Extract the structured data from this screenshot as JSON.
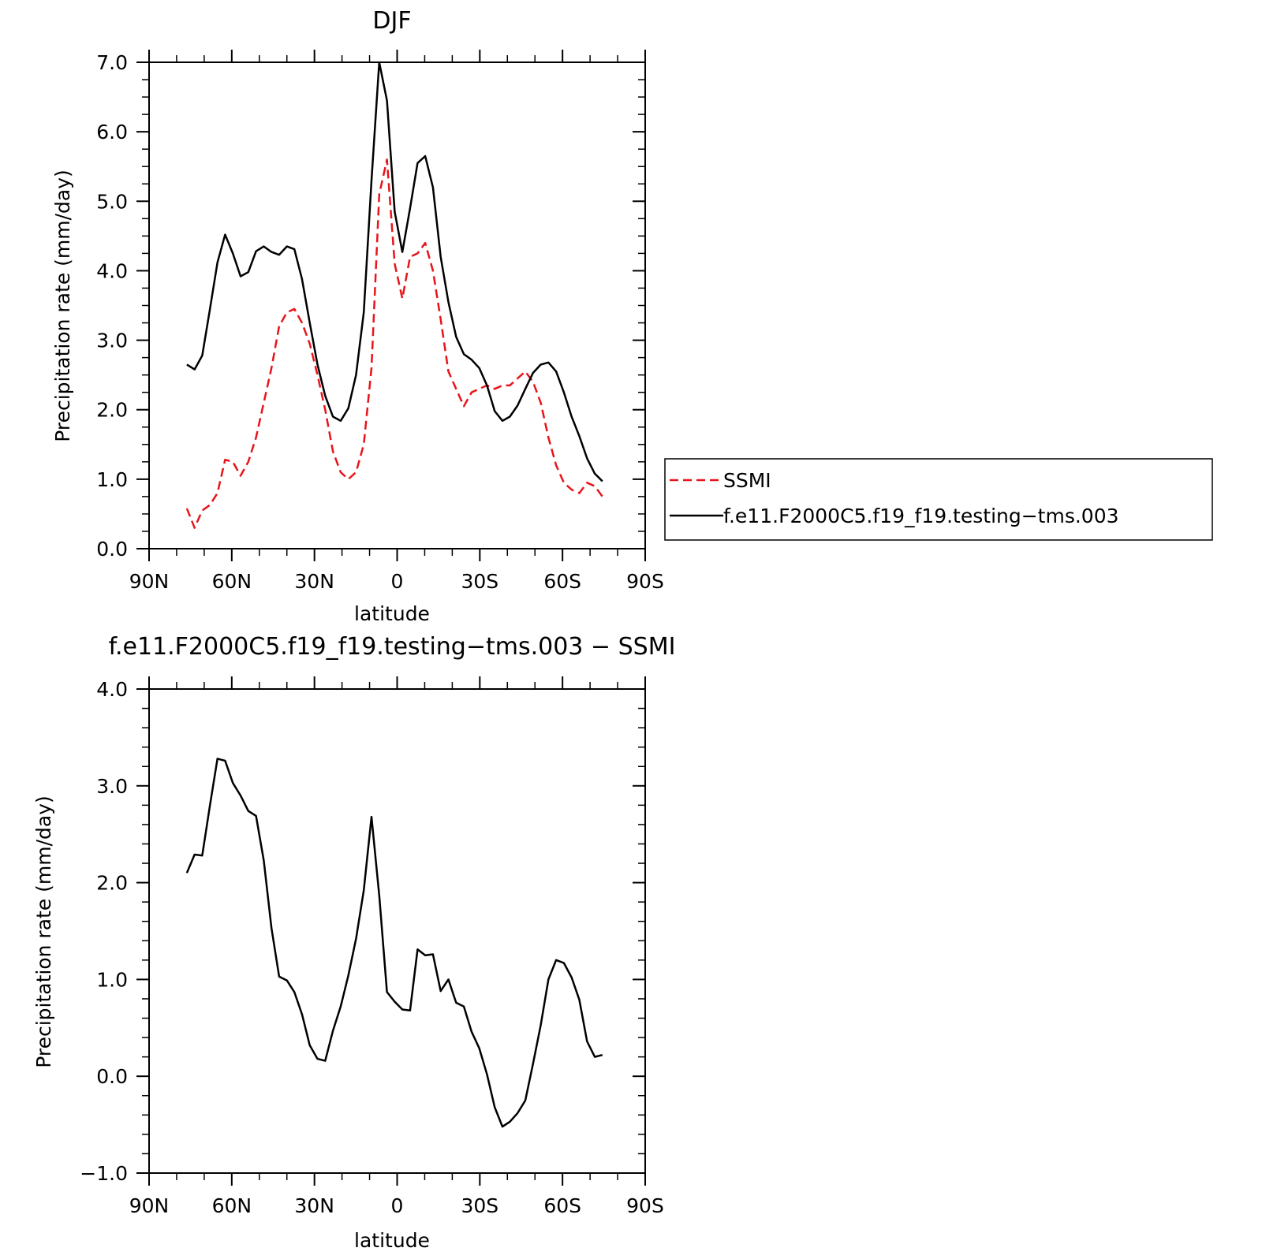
{
  "chart_data": [
    {
      "type": "line",
      "title": "DJF",
      "xlabel": "latitude",
      "ylabel": "Precipitation rate (mm/day)",
      "xlim": [
        90,
        -90
      ],
      "ylim": [
        0.0,
        7.0
      ],
      "x_ticks": [
        90,
        60,
        30,
        0,
        -30,
        -60,
        -90
      ],
      "x_tick_labels": [
        "90N",
        "60N",
        "30N",
        "0",
        "30S",
        "60S",
        "90S"
      ],
      "y_ticks": [
        0,
        1,
        2,
        3,
        4,
        5,
        6,
        7
      ],
      "y_tick_labels": [
        "0.0",
        "1.0",
        "2.0",
        "3.0",
        "4.0",
        "5.0",
        "6.0",
        "7.0"
      ],
      "legend": {
        "position": "right"
      },
      "series": [
        {
          "name": "SSMI",
          "color": "#e8141b",
          "dash": "dashed",
          "x": [
            76.3,
            73.5,
            70.7,
            67.9,
            65.2,
            62.4,
            59.6,
            56.8,
            54.0,
            51.2,
            48.4,
            45.6,
            42.8,
            40.0,
            37.3,
            34.5,
            31.7,
            28.9,
            26.1,
            23.3,
            20.5,
            17.7,
            14.9,
            12.1,
            9.3,
            6.5,
            3.7,
            0.9,
            -1.9,
            -4.7,
            -7.4,
            -10.2,
            -13.0,
            -15.8,
            -18.6,
            -21.4,
            -24.2,
            -27.0,
            -29.8,
            -32.6,
            -35.4,
            -38.2,
            -40.9,
            -43.7,
            -46.5,
            -49.3,
            -52.1,
            -54.9,
            -57.7,
            -60.5,
            -63.3,
            -66.1,
            -68.9,
            -71.7,
            -74.5
          ],
          "values": [
            0.58,
            0.3,
            0.55,
            0.63,
            0.8,
            1.28,
            1.25,
            1.05,
            1.25,
            1.6,
            2.1,
            2.6,
            3.2,
            3.4,
            3.45,
            3.25,
            2.95,
            2.5,
            2.0,
            1.4,
            1.1,
            1.0,
            1.1,
            1.5,
            2.6,
            5.1,
            5.6,
            4.1,
            3.6,
            4.2,
            4.25,
            4.4,
            4.0,
            3.3,
            2.55,
            2.3,
            2.05,
            2.25,
            2.3,
            2.35,
            2.3,
            2.35,
            2.35,
            2.45,
            2.55,
            2.4,
            2.1,
            1.6,
            1.2,
            0.95,
            0.85,
            0.8,
            0.95,
            0.9,
            0.75
          ]
        },
        {
          "name": "f.e11.F2000C5.f19_f19.testing−tms.003",
          "color": "#000000",
          "dash": "solid",
          "x": [
            76.3,
            73.5,
            70.7,
            67.9,
            65.2,
            62.4,
            59.6,
            56.8,
            54.0,
            51.2,
            48.4,
            45.6,
            42.8,
            40.0,
            37.3,
            34.5,
            31.7,
            28.9,
            26.1,
            23.3,
            20.5,
            17.7,
            14.9,
            12.1,
            9.3,
            6.5,
            3.7,
            0.9,
            -1.9,
            -4.7,
            -7.4,
            -10.2,
            -13.0,
            -15.8,
            -18.6,
            -21.4,
            -24.2,
            -27.0,
            -29.8,
            -32.6,
            -35.4,
            -38.2,
            -40.9,
            -43.7,
            -46.5,
            -49.3,
            -52.1,
            -54.9,
            -57.7,
            -60.5,
            -63.3,
            -66.1,
            -68.9,
            -71.7,
            -74.5
          ],
          "values": [
            2.65,
            2.58,
            2.78,
            3.45,
            4.12,
            4.52,
            4.25,
            3.92,
            3.98,
            4.28,
            4.35,
            4.27,
            4.23,
            4.35,
            4.31,
            3.88,
            3.25,
            2.65,
            2.2,
            1.9,
            1.84,
            2.02,
            2.5,
            3.4,
            5.3,
            7.0,
            6.45,
            4.85,
            4.27,
            4.9,
            5.55,
            5.65,
            5.2,
            4.2,
            3.55,
            3.05,
            2.8,
            2.72,
            2.6,
            2.35,
            1.98,
            1.84,
            1.9,
            2.06,
            2.3,
            2.53,
            2.65,
            2.68,
            2.55,
            2.25,
            1.9,
            1.62,
            1.3,
            1.08,
            0.97
          ]
        }
      ]
    },
    {
      "type": "line",
      "title": "f.e11.F2000C5.f19_f19.testing−tms.003 − SSMI",
      "xlabel": "latitude",
      "ylabel": "Precipitation rate (mm/day)",
      "xlim": [
        90,
        -90
      ],
      "ylim": [
        -1.0,
        4.0
      ],
      "x_ticks": [
        90,
        60,
        30,
        0,
        -30,
        -60,
        -90
      ],
      "x_tick_labels": [
        "90N",
        "60N",
        "30N",
        "0",
        "30S",
        "60S",
        "90S"
      ],
      "y_ticks": [
        -1,
        0,
        1,
        2,
        3,
        4
      ],
      "y_tick_labels": [
        "−1.0",
        "0.0",
        "1.0",
        "2.0",
        "3.0",
        "4.0"
      ],
      "series": [
        {
          "color": "#000000",
          "dash": "solid",
          "x": [
            76.3,
            73.5,
            70.7,
            67.9,
            65.2,
            62.4,
            59.6,
            56.8,
            54.0,
            51.2,
            48.4,
            45.6,
            42.8,
            40.0,
            37.3,
            34.5,
            31.7,
            28.9,
            26.1,
            23.3,
            20.5,
            17.7,
            14.9,
            12.1,
            9.3,
            6.5,
            3.7,
            0.9,
            -1.9,
            -4.7,
            -7.4,
            -10.2,
            -13.0,
            -15.8,
            -18.6,
            -21.4,
            -24.2,
            -27.0,
            -29.8,
            -32.6,
            -35.4,
            -38.2,
            -40.9,
            -43.7,
            -46.5,
            -49.3,
            -52.1,
            -54.9,
            -57.7,
            -60.5,
            -63.3,
            -66.1,
            -68.9,
            -71.7,
            -74.5
          ],
          "values": [
            2.1,
            2.29,
            2.28,
            2.8,
            3.28,
            3.26,
            3.03,
            2.9,
            2.74,
            2.69,
            2.23,
            1.53,
            1.03,
            0.99,
            0.87,
            0.64,
            0.32,
            0.18,
            0.16,
            0.47,
            0.72,
            1.04,
            1.42,
            1.92,
            2.68,
            1.87,
            0.87,
            0.77,
            0.69,
            0.68,
            1.31,
            1.25,
            1.26,
            0.88,
            1.0,
            0.76,
            0.72,
            0.46,
            0.29,
            0.02,
            -0.32,
            -0.52,
            -0.47,
            -0.38,
            -0.25,
            0.13,
            0.53,
            1.0,
            1.2,
            1.17,
            1.02,
            0.79,
            0.36,
            0.2,
            0.22
          ]
        }
      ]
    }
  ]
}
